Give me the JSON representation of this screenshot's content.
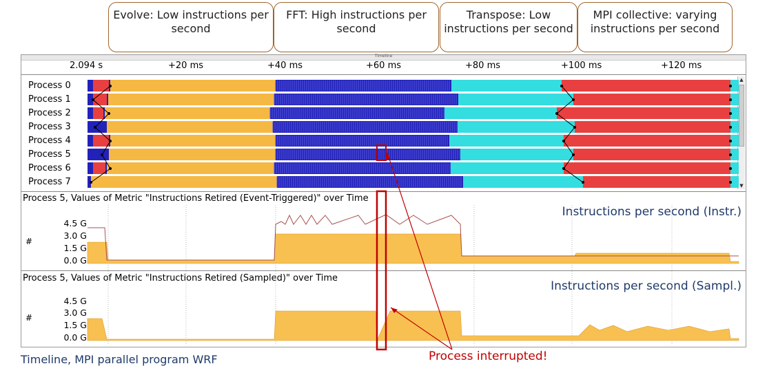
{
  "callouts": [
    {
      "text": "Evolve: Low instructions per second"
    },
    {
      "text": "FFT: High instructions per second"
    },
    {
      "text": "Transpose: Low instructions per second"
    },
    {
      "text": "MPI collective: varying instructions per second"
    }
  ],
  "window": {
    "title": "Timeline",
    "ruler_ticks": [
      "2.094 s",
      "+20 ms",
      "+40 ms",
      "+60 ms",
      "+80 ms",
      "+100 ms",
      "+120 ms"
    ]
  },
  "processes": [
    "Process 0",
    "Process 1",
    "Process 2",
    "Process 3",
    "Process 4",
    "Process 5",
    "Process 6",
    "Process 7"
  ],
  "metric1": {
    "title": "Process 5, Values of Metric \"Instructions Retired (Event-Triggered)\" over Time",
    "name": "Instructions per second (Instr.)",
    "y_unit": "#",
    "y_ticks": [
      "4.5 G",
      "3.0 G",
      "1.5 G",
      "0.0 G"
    ]
  },
  "metric2": {
    "title": "Process 5, Values of Metric \"Instructions Retired (Sampled)\" over Time",
    "name": "Instructions per second (Sampl.)",
    "y_unit": "#",
    "y_ticks": [
      "4.5 G",
      "3.0 G",
      "1.5 G",
      "0.0 G"
    ]
  },
  "caption": "Timeline, MPI parallel program WRF",
  "annotation": "Process interrupted!",
  "colors": {
    "evolve": "#f5b842",
    "fft": "#2222bb",
    "transpose": "#33dde0",
    "mpi": "#e84040",
    "metric_fill": "#f8c050",
    "metric_line": "#a85050",
    "callout_border": "#a0642c",
    "highlight": "#c00000"
  }
}
